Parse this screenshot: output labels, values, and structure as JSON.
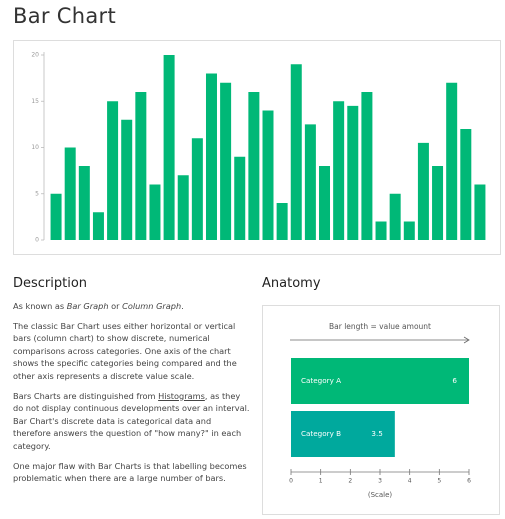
{
  "header": {
    "title": "Bar Chart"
  },
  "sections": {
    "description": "Description",
    "anatomy": "Anatomy"
  },
  "description": {
    "paragraphs": [
      [
        "As known as ",
        "Bar Graph",
        " or ",
        "Column Graph",
        "."
      ],
      [
        "The classic Bar Chart uses either horizontal or vertical bars (column chart) to show discrete, numerical comparisons across categories. One axis of the chart shows the specific categories being compared and the other axis represents a discrete value scale."
      ],
      [
        "Bars Charts are distinguished from ",
        "Histograms",
        ", as they do not display continuous developments over an interval. Bar Chart's discrete data is categorical data and therefore answers the question of \"how many?\" in each category."
      ],
      [
        "One major flaw with Bar Charts is that labelling becomes problematic when there are a large number of bars."
      ]
    ]
  },
  "chart_data": [
    {
      "type": "bar",
      "color": "#00b877",
      "categories": [
        null,
        null,
        null,
        null,
        null,
        null,
        null,
        null,
        null,
        null,
        null,
        null,
        null,
        null,
        null,
        null,
        null,
        null,
        null,
        null,
        null,
        null,
        null,
        null,
        null,
        null,
        null,
        null,
        null,
        null,
        null
      ],
      "values": [
        5,
        10,
        8,
        3,
        15,
        13,
        16,
        6,
        20,
        7,
        11,
        18,
        17,
        9,
        16,
        14,
        4,
        19,
        12.5,
        8,
        15,
        14.5,
        16,
        2,
        5,
        2,
        10.5,
        8,
        17,
        12,
        6
      ],
      "ylim": [
        0,
        20
      ],
      "yticks": [
        0,
        5,
        10,
        15,
        20
      ]
    },
    {
      "type": "hbar",
      "title": "Bar length = value amount",
      "x_label": "(Scale)",
      "categories": [
        "Category A",
        "Category B"
      ],
      "values": [
        6,
        3.5
      ],
      "colors": [
        "#00b877",
        "#00a99d"
      ],
      "xlim": [
        0,
        6
      ],
      "xticks": [
        0,
        1,
        2,
        3,
        4,
        5,
        6
      ]
    }
  ]
}
